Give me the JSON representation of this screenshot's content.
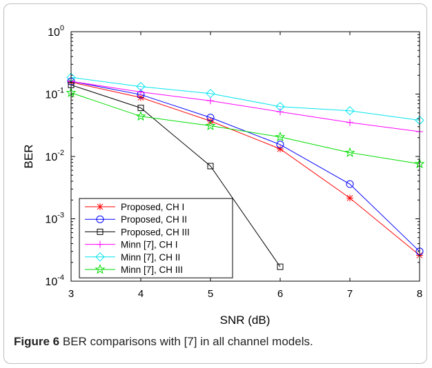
{
  "caption": {
    "label": "Figure 6",
    "text": "BER comparisons with [7] in all channel models."
  },
  "chart_data": {
    "type": "line",
    "xlabel": "SNR (dB)",
    "ylabel": "BER",
    "xlim": [
      3,
      8
    ],
    "ylim": [
      0.0001,
      1
    ],
    "yscale": "log",
    "x_ticks": [
      "3",
      "4",
      "5",
      "6",
      "7",
      "8"
    ],
    "y_tick_exponents": [
      "0",
      "-1",
      "-2",
      "-3",
      "-4"
    ],
    "y_tick_base": "10",
    "grid": false,
    "legend": "bottom-left",
    "series": [
      {
        "name": "Proposed, CH I",
        "color": "#ff0000",
        "marker": "star",
        "x": [
          3,
          4,
          5,
          6,
          7,
          8
        ],
        "y": [
          0.155,
          0.088,
          0.037,
          0.0132,
          0.00215,
          0.00026
        ]
      },
      {
        "name": "Proposed, CH II",
        "color": "#0000ff",
        "marker": "circle",
        "x": [
          3,
          4,
          5,
          6,
          7,
          8
        ],
        "y": [
          0.16,
          0.098,
          0.042,
          0.0155,
          0.0036,
          0.0003
        ]
      },
      {
        "name": "Proposed, CH III",
        "color": "#000000",
        "marker": "square",
        "x": [
          3,
          4,
          5,
          6
        ],
        "y": [
          0.14,
          0.06,
          0.007,
          0.00017
        ]
      },
      {
        "name": "Minn [7], CH I",
        "color": "#ff00ff",
        "marker": "plus",
        "x": [
          3,
          4,
          5,
          6,
          7,
          8
        ],
        "y": [
          0.16,
          0.108,
          0.078,
          0.052,
          0.035,
          0.025
        ]
      },
      {
        "name": "Minn [7], CH II",
        "color": "#00e5ee",
        "marker": "diamond",
        "x": [
          3,
          4,
          5,
          6,
          7,
          8
        ],
        "y": [
          0.185,
          0.132,
          0.102,
          0.063,
          0.054,
          0.038
        ]
      },
      {
        "name": "Minn [7], CH III",
        "color": "#00dd00",
        "marker": "pentagram",
        "x": [
          3,
          4,
          5,
          6,
          7,
          8
        ],
        "y": [
          0.105,
          0.044,
          0.031,
          0.0205,
          0.0115,
          0.0076
        ]
      }
    ]
  }
}
